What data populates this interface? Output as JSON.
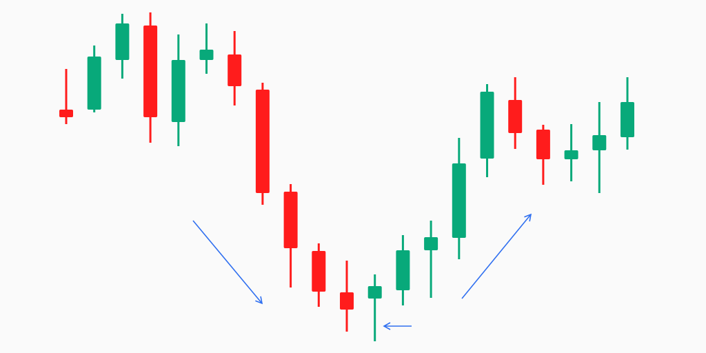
{
  "chart_data": {
    "type": "candlestick",
    "title": "",
    "xlabel": "",
    "ylabel": "",
    "axes_visible": false,
    "grid": false,
    "ylim": [
      0,
      51.2
    ],
    "colors": {
      "up": "#08a97a",
      "down": "#ff1c1c",
      "arrow": "#2f6ff0",
      "background": "#fafafa"
    },
    "candles": [
      {
        "o": 35.3,
        "h": 41.2,
        "l": 33.2,
        "c": 34.2
      },
      {
        "o": 35.3,
        "h": 44.6,
        "l": 34.9,
        "c": 43.0
      },
      {
        "o": 42.5,
        "h": 49.2,
        "l": 39.8,
        "c": 47.8
      },
      {
        "o": 47.5,
        "h": 49.4,
        "l": 30.5,
        "c": 34.2
      },
      {
        "o": 33.5,
        "h": 46.2,
        "l": 30.0,
        "c": 42.5
      },
      {
        "o": 42.5,
        "h": 47.8,
        "l": 40.5,
        "c": 44.0
      },
      {
        "o": 43.3,
        "h": 46.7,
        "l": 35.9,
        "c": 38.7
      },
      {
        "o": 38.2,
        "h": 39.2,
        "l": 21.5,
        "c": 23.2
      },
      {
        "o": 23.4,
        "h": 24.5,
        "l": 9.5,
        "c": 15.2
      },
      {
        "o": 14.8,
        "h": 15.9,
        "l": 6.7,
        "c": 8.9
      },
      {
        "o": 8.8,
        "h": 13.4,
        "l": 3.1,
        "c": 6.3
      },
      {
        "o": 7.9,
        "h": 11.4,
        "l": 1.7,
        "c": 9.7
      },
      {
        "o": 9.1,
        "h": 17.1,
        "l": 6.9,
        "c": 14.9
      },
      {
        "o": 14.9,
        "h": 19.2,
        "l": 8.0,
        "c": 16.8
      },
      {
        "o": 16.7,
        "h": 31.2,
        "l": 13.6,
        "c": 27.5
      },
      {
        "o": 28.2,
        "h": 39.0,
        "l": 25.5,
        "c": 37.9
      },
      {
        "o": 36.7,
        "h": 40.0,
        "l": 29.6,
        "c": 31.9
      },
      {
        "o": 32.4,
        "h": 33.1,
        "l": 24.4,
        "c": 28.1
      },
      {
        "o": 28.1,
        "h": 33.2,
        "l": 24.9,
        "c": 29.4
      },
      {
        "o": 29.4,
        "h": 36.4,
        "l": 23.2,
        "c": 31.6
      },
      {
        "o": 31.3,
        "h": 40.0,
        "l": 29.5,
        "c": 36.4
      }
    ],
    "annotations": [
      {
        "type": "arrow",
        "direction": "down-right"
      },
      {
        "type": "arrow",
        "direction": "left"
      },
      {
        "type": "arrow",
        "direction": "up-right"
      }
    ]
  }
}
